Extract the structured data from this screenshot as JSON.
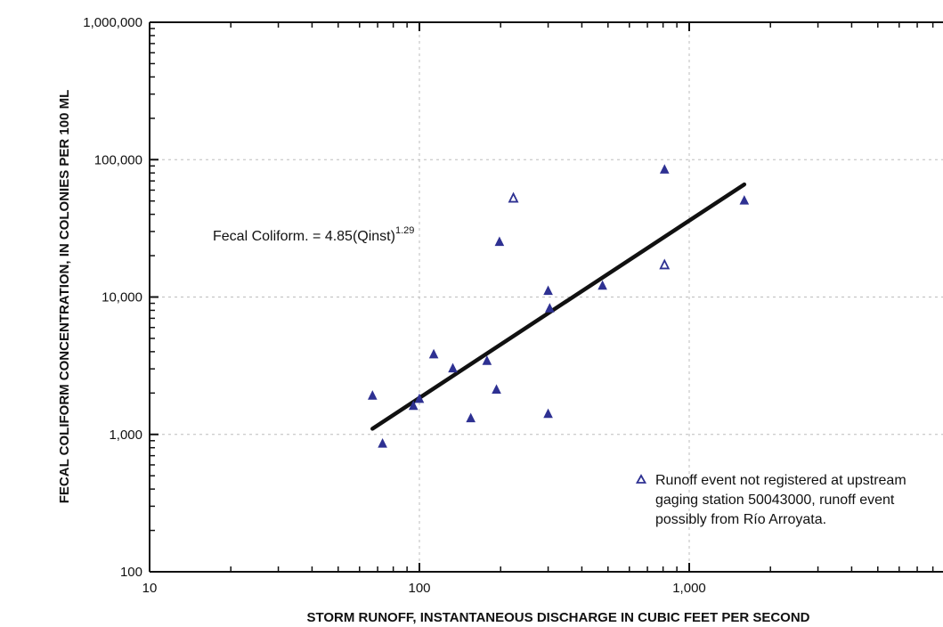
{
  "chart_data": {
    "type": "scatter",
    "xlabel": "STORM RUNOFF, INSTANTANEOUS DISCHARGE IN CUBIC FEET PER SECOND",
    "ylabel": "FECAL COLIFORM CONCENTRATION, IN COLONIES PER 100 ML",
    "x_scale": "log",
    "y_scale": "log",
    "xlim": [
      10,
      8500
    ],
    "ylim": [
      100,
      1000000
    ],
    "x_ticks": [
      10,
      100,
      1000
    ],
    "x_tick_labels": [
      "10",
      "100",
      "1,000"
    ],
    "y_ticks": [
      100,
      1000,
      10000,
      100000,
      1000000
    ],
    "y_tick_labels": [
      "100",
      "1,000",
      "10,000",
      "100,000",
      "1,000,000"
    ],
    "grid": true,
    "legend_position": "bottom-right",
    "annotation": {
      "text": "Fecal Coliform. = 4.85(Qinst)",
      "superscript": "1.29"
    },
    "legend": {
      "lines": [
        "Runoff event not registered at upstream",
        "gaging station 50043000, runoff event",
        "possibly from Río Arroyata."
      ]
    },
    "colors": {
      "filled_marker": "#2e3192",
      "open_marker": "#2e3192",
      "fit_line": "#111111"
    },
    "series": [
      {
        "marker": "filled-triangle",
        "points": [
          [
            67,
            1900
          ],
          [
            73,
            850
          ],
          [
            95,
            1600
          ],
          [
            100,
            1800
          ],
          [
            113,
            3800
          ],
          [
            133,
            3000
          ],
          [
            155,
            1300
          ],
          [
            178,
            3400
          ],
          [
            193,
            2100
          ],
          [
            198,
            25000
          ],
          [
            300,
            11000
          ],
          [
            300,
            1400
          ],
          [
            304,
            8200
          ],
          [
            477,
            12000
          ],
          [
            810,
            84000
          ],
          [
            1600,
            50000
          ]
        ]
      },
      {
        "marker": "open-triangle",
        "points": [
          [
            223,
            52000
          ],
          [
            810,
            17000
          ]
        ]
      },
      {
        "marker": "line",
        "points": [
          [
            67,
            1100
          ],
          [
            1600,
            66000
          ]
        ]
      }
    ]
  }
}
